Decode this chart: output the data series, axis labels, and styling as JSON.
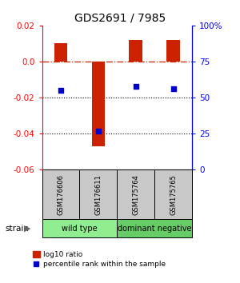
{
  "title": "GDS2691 / 7985",
  "samples": [
    "GSM176606",
    "GSM176611",
    "GSM175764",
    "GSM175765"
  ],
  "log10_ratio": [
    0.01,
    -0.047,
    0.012,
    0.012
  ],
  "percentile_rank": [
    55,
    27,
    58,
    56
  ],
  "groups": [
    {
      "label": "wild type",
      "color": "#90EE90",
      "start": 0,
      "end": 2
    },
    {
      "label": "dominant negative",
      "color": "#66CC66",
      "start": 2,
      "end": 4
    }
  ],
  "ylim_left": [
    -0.06,
    0.02
  ],
  "ylim_right": [
    0,
    100
  ],
  "yticks_left": [
    -0.06,
    -0.04,
    -0.02,
    0.0,
    0.02
  ],
  "yticks_right": [
    0,
    25,
    50,
    75,
    100
  ],
  "bar_color": "#CC2200",
  "dot_color": "#0000CC",
  "hline_color": "#CC2200",
  "dotted_lines": [
    -0.02,
    -0.04
  ],
  "background_color": "#ffffff",
  "legend_bar_label": "log10 ratio",
  "legend_dot_label": "percentile rank within the sample",
  "strain_label": "strain",
  "sample_box_color": "#C8C8C8",
  "bar_width": 0.35
}
